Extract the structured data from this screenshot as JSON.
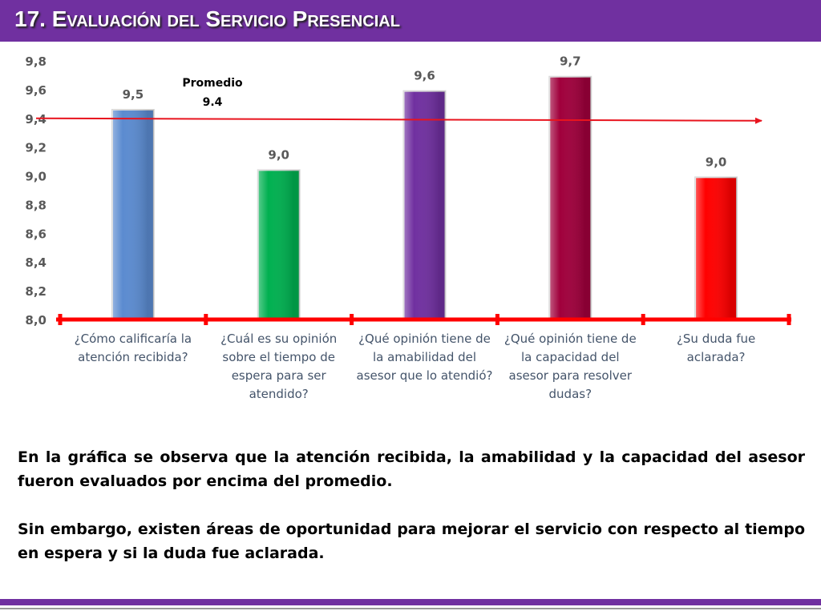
{
  "chart_data": {
    "type": "bar",
    "title": "17. Evaluación del Servicio Presencial",
    "categories": [
      "¿Cómo calificaría la atención recibida?",
      "¿Cuál es su opinión sobre el tiempo de espera para ser atendido?",
      "¿Qué opinión tiene de la amabilidad del asesor que lo atendió?",
      "¿Qué opinión tiene de la capacidad del asesor para resolver dudas?",
      "¿Su duda fue aclarada?"
    ],
    "values": [
      9.46,
      9.04,
      9.59,
      9.69,
      8.99
    ],
    "value_labels": [
      "9,5",
      "9,0",
      "9,6",
      "9,7",
      "9,0"
    ],
    "colors": [
      "#5b8bd0",
      "#00b050",
      "#7030a0",
      "#a0003c",
      "#ff0000"
    ],
    "ylim": [
      8.0,
      9.8
    ],
    "yticks": [
      {
        "value": 8.0,
        "label": "8,0"
      },
      {
        "value": 8.2,
        "label": "8,2"
      },
      {
        "value": 8.4,
        "label": "8,4"
      },
      {
        "value": 8.6,
        "label": "8,6"
      },
      {
        "value": 8.8,
        "label": "8,8"
      },
      {
        "value": 9.0,
        "label": "9,0"
      },
      {
        "value": 9.2,
        "label": "9,2"
      },
      {
        "value": 9.4,
        "label": "9,4"
      },
      {
        "value": 9.6,
        "label": "9,6"
      },
      {
        "value": 9.8,
        "label": "9,8"
      }
    ],
    "average_label": "Promedio",
    "average": 9.4
  },
  "paragraphs": [
    "En la gráfica se observa que la atención recibida, la amabilidad y la capacidad del asesor fueron evaluados por encima del promedio.",
    "Sin embargo, existen áreas de oportunidad para mejorar el servicio con respecto al tiempo en espera y si la duda fue aclarada."
  ]
}
